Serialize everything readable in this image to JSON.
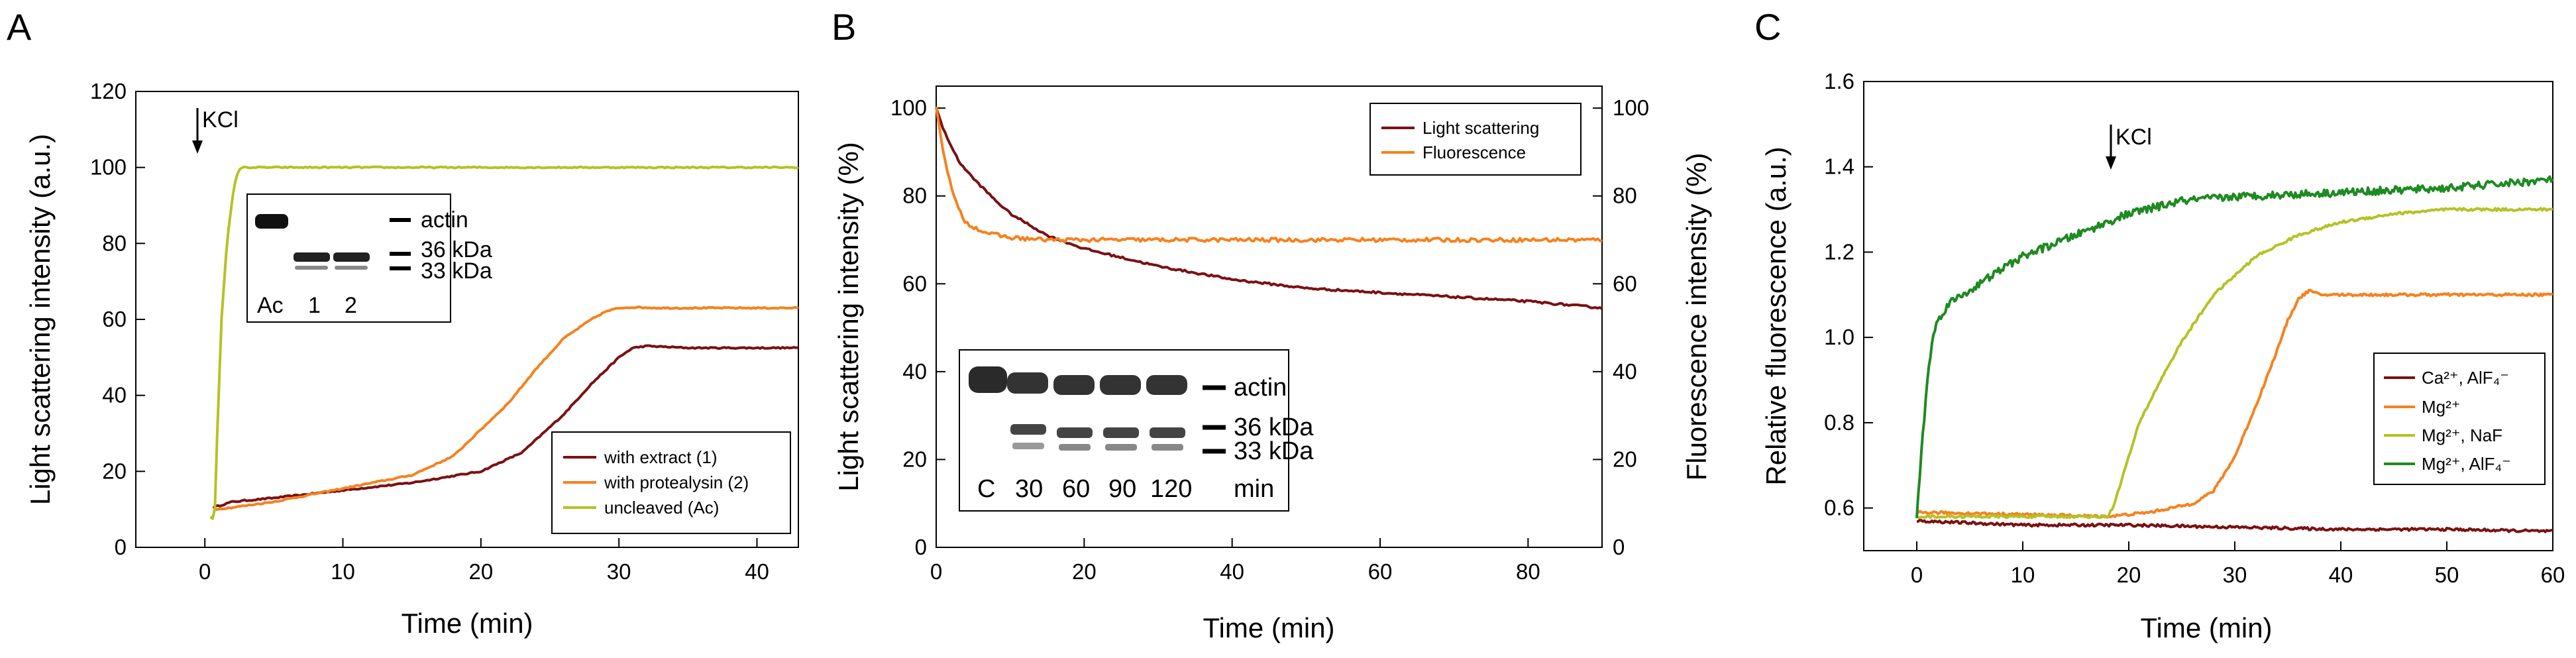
{
  "colors": {
    "extract": "#7b1113",
    "protealysin": "#f5821f",
    "uncleaved": "#b5c225",
    "light_scattering": "#7b1113",
    "fluorescence": "#f5821f",
    "ca_alf4": "#7b1113",
    "mg": "#f5821f",
    "mg_naf": "#b5c225",
    "mg_alf4": "#1e8a22"
  },
  "chart_data": [
    {
      "panel": "A",
      "type": "line",
      "title": "",
      "xlabel": "Time (min)",
      "ylabel": "Light scattering intensity (a.u.)",
      "xlim": [
        -5,
        43
      ],
      "ylim": [
        0,
        120
      ],
      "xticks": [
        "0",
        "10",
        "20",
        "30",
        "40"
      ],
      "yticks": [
        "0",
        "20",
        "40",
        "60",
        "80",
        "100",
        "120"
      ],
      "legend_position": "bottom-right",
      "annotation": "KCl",
      "annotation_x": 0.6,
      "series": [
        {
          "name": "with extract (1)",
          "color_key": "extract",
          "x": [
            0.6,
            2,
            5,
            10,
            15,
            20,
            23,
            26,
            28,
            30,
            31,
            32,
            35,
            40,
            43
          ],
          "y": [
            10.5,
            12,
            13,
            15,
            17,
            20,
            25,
            35,
            43,
            50,
            52.5,
            53,
            52.5,
            52.5,
            52.5
          ]
        },
        {
          "name": "with protealysin (2)",
          "color_key": "protealysin",
          "x": [
            0.6,
            2,
            5,
            10,
            15,
            18,
            20,
            22,
            24,
            26,
            28,
            29,
            30,
            31,
            33,
            35,
            40,
            43
          ],
          "y": [
            10,
            10.5,
            12,
            15.5,
            19,
            24,
            31,
            38,
            47,
            55,
            60,
            62,
            63,
            63.2,
            63,
            63,
            63,
            63
          ]
        },
        {
          "name": "uncleaved (Ac)",
          "color_key": "uncleaved",
          "x": [
            0.4,
            0.7,
            0.9,
            1.2,
            1.6,
            2.0,
            2.3,
            2.6,
            5,
            20,
            43
          ],
          "y": [
            8,
            7,
            30,
            60,
            80,
            92,
            98,
            100,
            100,
            100,
            100
          ]
        }
      ],
      "inset": {
        "lane_labels": [
          "Ac",
          "1",
          "2"
        ],
        "band_labels": [
          "actin",
          "36 kDa",
          "33 kDa"
        ]
      }
    },
    {
      "panel": "B",
      "type": "line",
      "title": "",
      "xlabel": "Time (min)",
      "ylabel": "Light scattering intensity (%)",
      "ylabel_right": "Fluorescence intensity (%)",
      "xlim": [
        0,
        90
      ],
      "ylim": [
        0,
        105
      ],
      "ylim_right": [
        0,
        105
      ],
      "xticks": [
        "0",
        "20",
        "40",
        "60",
        "80"
      ],
      "yticks": [
        "0",
        "20",
        "40",
        "60",
        "80",
        "100"
      ],
      "yticks_right": [
        "0",
        "20",
        "40",
        "60",
        "80",
        "100"
      ],
      "legend_position": "top-right",
      "series": [
        {
          "name": "Light scattering",
          "color_key": "light_scattering",
          "x": [
            0,
            1,
            3,
            5,
            8,
            10,
            15,
            20,
            25,
            30,
            40,
            50,
            60,
            70,
            80,
            90
          ],
          "y": [
            100,
            95,
            88,
            84,
            79,
            76,
            71,
            68,
            66,
            64,
            61,
            59,
            58,
            57,
            56,
            54.5
          ]
        },
        {
          "name": "Fluorescence",
          "color_key": "fluorescence",
          "x": [
            0,
            1,
            2,
            3,
            4,
            5,
            7,
            10,
            15,
            20,
            40,
            60,
            80,
            90
          ],
          "y": [
            100,
            90,
            82,
            77,
            74,
            73,
            71.5,
            70.5,
            70,
            70,
            70,
            70,
            70,
            70
          ]
        }
      ],
      "inset": {
        "lane_labels": [
          "C",
          "30",
          "60",
          "90",
          "120",
          "min"
        ],
        "band_labels": [
          "actin",
          "36 kDa",
          "33 kDa"
        ]
      }
    },
    {
      "panel": "C",
      "type": "line",
      "title": "",
      "xlabel": "Time (min)",
      "ylabel": "Relative fluorescence (a.u.)",
      "xlim": [
        -5,
        60
      ],
      "ylim": [
        0.5,
        1.6
      ],
      "xticks": [
        "0",
        "10",
        "20",
        "30",
        "40",
        "50",
        "60"
      ],
      "yticks": [
        "0.6",
        "0.8",
        "1.0",
        "1.2",
        "1.4",
        "1.6"
      ],
      "legend_position": "bottom-right",
      "annotation": "KCl",
      "annotation_x": 18.5,
      "series": [
        {
          "name": "Ca²⁺, AlF₄⁻",
          "color_key": "ca_alf4",
          "x": [
            0,
            5,
            10,
            20,
            30,
            40,
            50,
            60
          ],
          "y": [
            0.57,
            0.565,
            0.56,
            0.56,
            0.555,
            0.55,
            0.55,
            0.545
          ]
        },
        {
          "name": "Mg²⁺",
          "color_key": "mg",
          "x": [
            0,
            10,
            18,
            22,
            26,
            28,
            30,
            32,
            34,
            35,
            36,
            37,
            38,
            40,
            50,
            60
          ],
          "y": [
            0.59,
            0.585,
            0.58,
            0.59,
            0.61,
            0.64,
            0.72,
            0.84,
            0.97,
            1.04,
            1.09,
            1.11,
            1.1,
            1.1,
            1.1,
            1.1
          ]
        },
        {
          "name": "Mg²⁺, NaF",
          "color_key": "mg_naf",
          "x": [
            0,
            10,
            18,
            18.5,
            19.5,
            21,
            23,
            25,
            28,
            32,
            36,
            40,
            45,
            50,
            55,
            60
          ],
          "y": [
            0.58,
            0.58,
            0.58,
            0.6,
            0.68,
            0.8,
            0.9,
            0.99,
            1.1,
            1.19,
            1.24,
            1.27,
            1.29,
            1.3,
            1.3,
            1.3
          ]
        },
        {
          "name": "Mg²⁺, AlF₄⁻",
          "color_key": "mg_alf4",
          "x": [
            0,
            0.5,
            1,
            1.5,
            2,
            3,
            5,
            8,
            10,
            15,
            20,
            25,
            30,
            40,
            50,
            60
          ],
          "y": [
            0.58,
            0.75,
            0.9,
            1.0,
            1.04,
            1.08,
            1.11,
            1.16,
            1.19,
            1.24,
            1.29,
            1.32,
            1.33,
            1.34,
            1.35,
            1.37
          ]
        }
      ]
    }
  ]
}
